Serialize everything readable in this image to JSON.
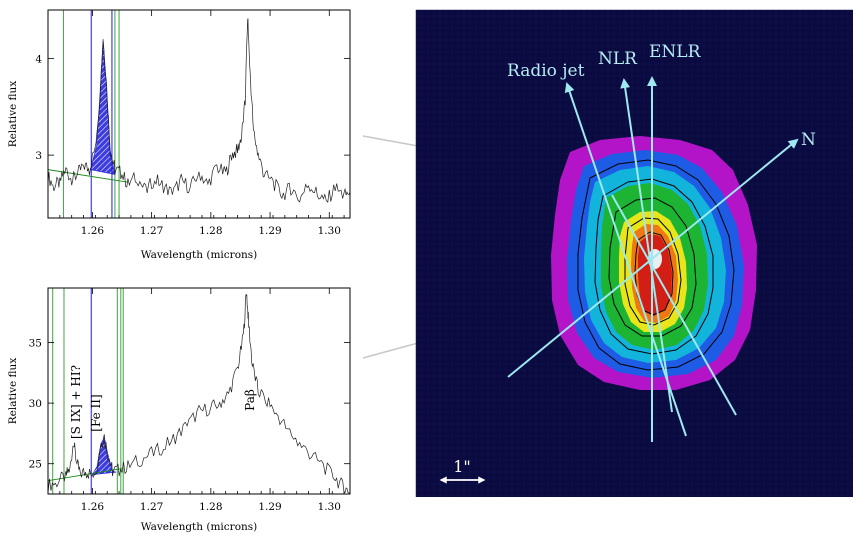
{
  "chart_data": [
    {
      "type": "line",
      "panel": "top-left",
      "xlabel": "Wavelength (microns)",
      "ylabel": "Relative flux",
      "xlim": [
        1.2525,
        1.3035
      ],
      "ylim": [
        2.35,
        4.5
      ],
      "xticks": [
        1.26,
        1.27,
        1.28,
        1.29,
        1.3
      ],
      "xtick_labels": [
        "1.26",
        "1.27",
        "1.28",
        "1.29",
        "1.30"
      ],
      "yticks": [
        3,
        4
      ],
      "ytick_labels": [
        "3",
        "4"
      ],
      "series": [
        {
          "x": [
            1.2525,
            1.2535,
            1.2545,
            1.2555,
            1.2565,
            1.2575,
            1.2585,
            1.2595,
            1.2605,
            1.2612,
            1.2618,
            1.2624,
            1.263,
            1.2638,
            1.2648,
            1.266,
            1.2675,
            1.269,
            1.2705,
            1.272,
            1.2735,
            1.275,
            1.2765,
            1.278,
            1.2795,
            1.281,
            1.2825,
            1.2835,
            1.2845,
            1.2852,
            1.2858,
            1.2862,
            1.2866,
            1.2872,
            1.288,
            1.289,
            1.2905,
            1.292,
            1.2935,
            1.295,
            1.2965,
            1.298,
            1.2995,
            1.301,
            1.3025,
            1.3035
          ],
          "y": [
            2.78,
            2.68,
            2.72,
            2.86,
            2.74,
            2.8,
            2.9,
            2.85,
            3.1,
            3.55,
            4.2,
            3.7,
            3.05,
            2.85,
            2.82,
            2.7,
            2.78,
            2.62,
            2.76,
            2.68,
            2.6,
            2.74,
            2.66,
            2.82,
            2.7,
            2.88,
            2.8,
            3.0,
            3.05,
            3.2,
            3.55,
            4.45,
            3.9,
            3.25,
            3.0,
            2.8,
            2.72,
            2.58,
            2.66,
            2.55,
            2.7,
            2.6,
            2.52,
            2.66,
            2.58,
            2.62
          ]
        }
      ],
      "continuum": {
        "x": [
          1.2525,
          1.266
        ],
        "y": [
          2.85,
          2.72
        ]
      },
      "shaded_line": {
        "x": [
          1.2597,
          1.2607,
          1.2612,
          1.2618,
          1.2624,
          1.263,
          1.2638
        ],
        "y": [
          2.85,
          3.1,
          3.55,
          4.2,
          3.7,
          3.05,
          2.8
        ]
      },
      "vlines_green": [
        1.2551,
        1.2638,
        1.2645
      ],
      "vlines_blue": [
        1.2598,
        1.2633
      ]
    },
    {
      "type": "line",
      "panel": "bottom-left",
      "xlabel": "Wavelength (microns)",
      "ylabel": "Relative flux",
      "xlim": [
        1.2525,
        1.3035
      ],
      "ylim": [
        22.5,
        39.5
      ],
      "xticks": [
        1.26,
        1.27,
        1.28,
        1.29,
        1.3
      ],
      "xtick_labels": [
        "1.26",
        "1.27",
        "1.28",
        "1.29",
        "1.30"
      ],
      "yticks": [
        25,
        30,
        35
      ],
      "ytick_labels": [
        "25",
        "30",
        "35"
      ],
      "series": [
        {
          "x": [
            1.2525,
            1.254,
            1.2555,
            1.2562,
            1.2568,
            1.2574,
            1.258,
            1.259,
            1.26,
            1.2608,
            1.2614,
            1.262,
            1.2626,
            1.2634,
            1.2645,
            1.266,
            1.268,
            1.27,
            1.272,
            1.274,
            1.276,
            1.278,
            1.28,
            1.2815,
            1.283,
            1.2845,
            1.2855,
            1.286,
            1.2864,
            1.287,
            1.288,
            1.2895,
            1.291,
            1.293,
            1.295,
            1.297,
            1.299,
            1.301,
            1.3025,
            1.3035
          ],
          "y": [
            23.2,
            23.5,
            24.0,
            24.6,
            26.8,
            24.9,
            24.2,
            24.3,
            24.1,
            24.8,
            26.6,
            27.2,
            25.8,
            24.4,
            24.5,
            24.8,
            25.3,
            25.8,
            26.4,
            27.2,
            28.2,
            29.3,
            29.6,
            30.0,
            30.8,
            32.8,
            35.5,
            39.3,
            36.5,
            33.2,
            31.0,
            30.2,
            29.2,
            27.8,
            26.6,
            25.7,
            24.8,
            23.8,
            23.0,
            22.6
          ]
        }
      ],
      "continuum": {
        "x": [
          1.2525,
          1.265
        ],
        "y": [
          23.6,
          24.6
        ]
      },
      "shaded_line": {
        "x": [
          1.26,
          1.2608,
          1.2614,
          1.262,
          1.2626,
          1.2634,
          1.264
        ],
        "y": [
          24.1,
          24.8,
          26.6,
          27.2,
          25.8,
          24.4,
          24.3
        ]
      },
      "vlines_green": [
        1.2533,
        1.2552,
        1.2642,
        1.2648,
        1.2652
      ],
      "vlines_blue": [
        1.2598
      ],
      "annotations": [
        "[S IX] + HI?",
        "[Fe II]",
        "Paβ"
      ]
    },
    {
      "type": "heatmap",
      "panel": "right",
      "arrow_labels": [
        "Radio jet",
        "NLR",
        "ENLR",
        "N"
      ],
      "scale_bar_label": "1\"",
      "colors": {
        "background": "#0a0a3e",
        "halo": "#b414c8",
        "blue": "#1e5ce6",
        "cyan": "#12b4dc",
        "green": "#1cb432",
        "yellow": "#e8e61a",
        "orange": "#f07814",
        "red": "#d21e14",
        "arrows": "#9ee8f0"
      }
    }
  ]
}
